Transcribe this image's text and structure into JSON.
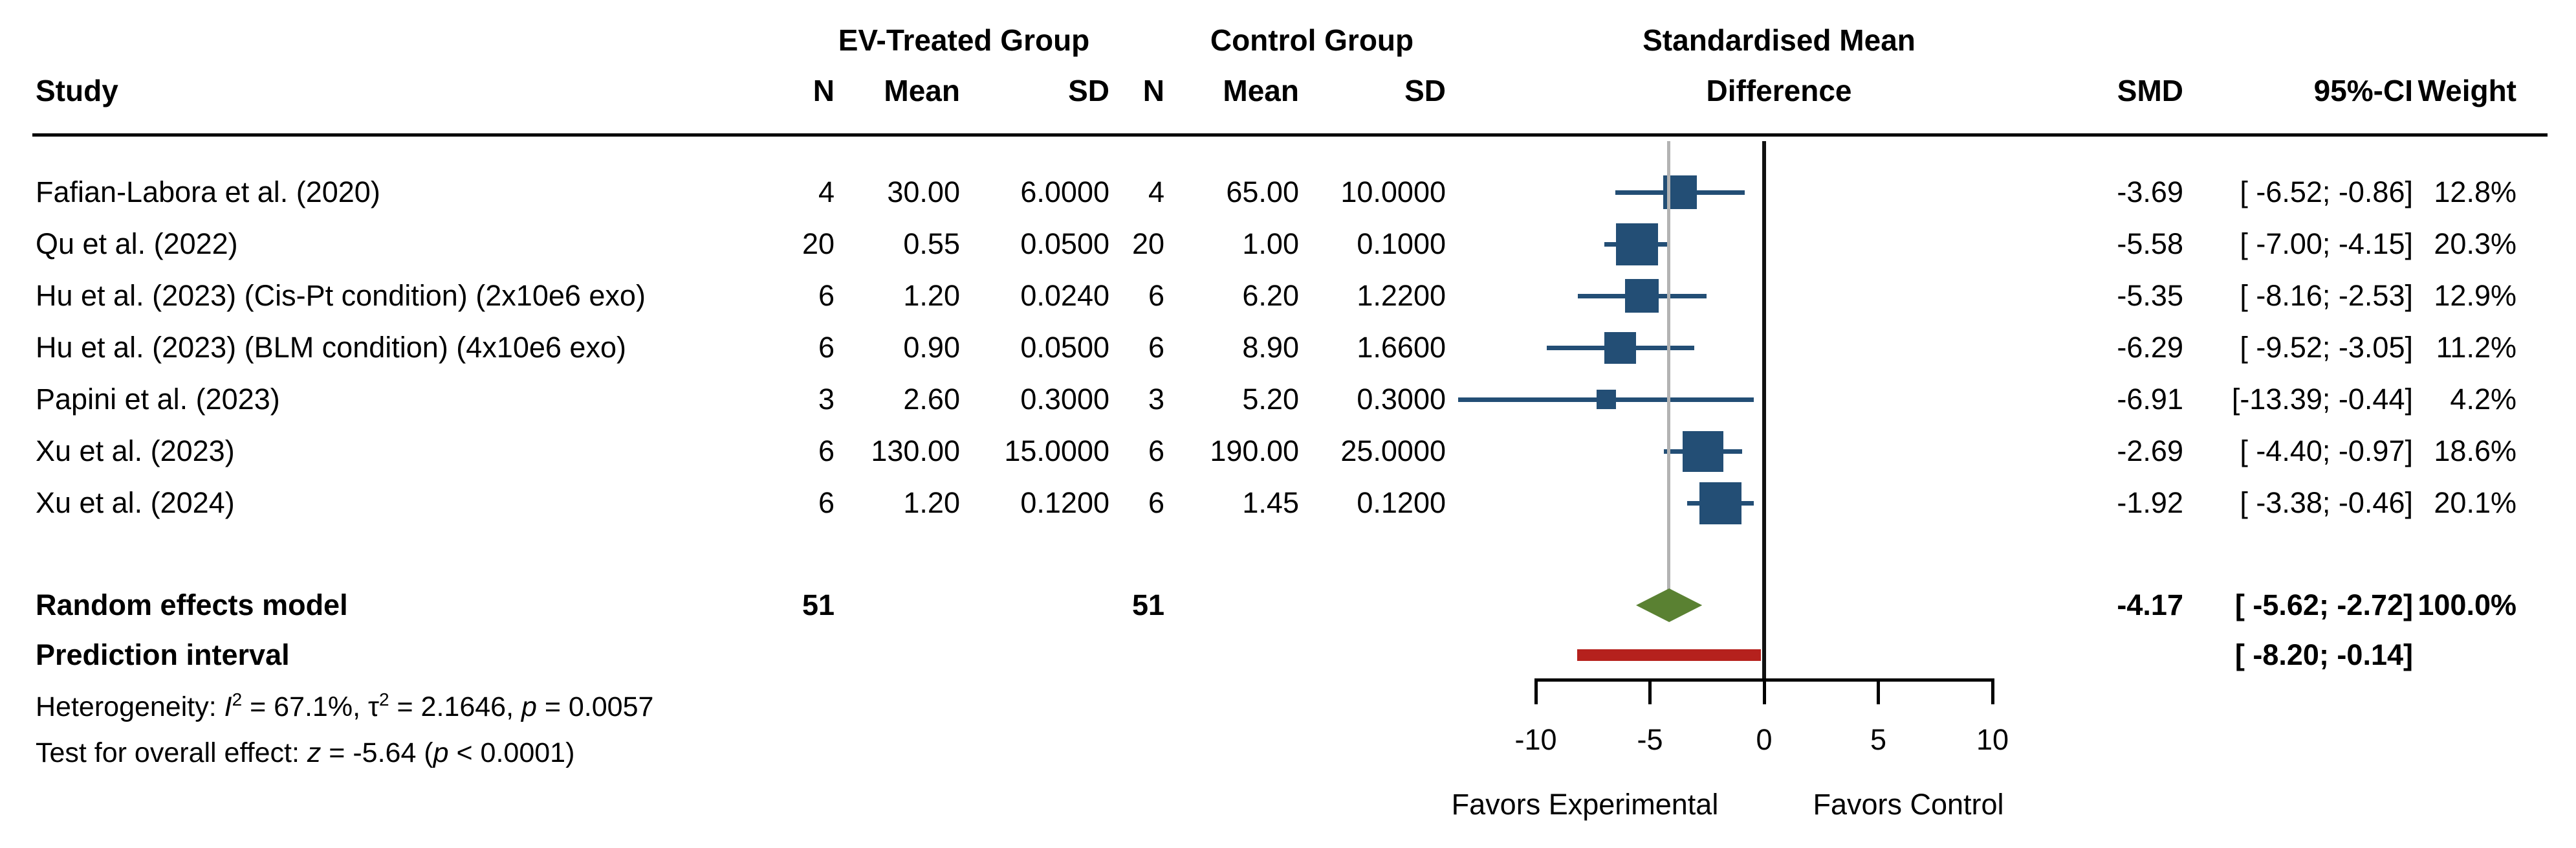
{
  "headers": {
    "study": "Study",
    "ev_group": "EV-Treated Group",
    "control_group": "Control Group",
    "smd_header_line1": "Standardised Mean",
    "smd_header_line2": "Difference",
    "n": "N",
    "mean": "Mean",
    "sd": "SD",
    "smd": "SMD",
    "ci": "95%-CI",
    "weight": "Weight"
  },
  "chart_data": {
    "type": "forest",
    "effect_measure": "Standardised Mean Difference",
    "x_axis": {
      "range": [
        -10,
        10
      ],
      "tick_values": [
        -10,
        -5,
        0,
        5,
        10
      ],
      "tick_labels": [
        "-10",
        "-5",
        "0",
        "5",
        "10"
      ],
      "ref_line": 0,
      "pooled_effect_line": -4.17,
      "label_left": "Favors Experimental",
      "label_right": "Favors Control"
    },
    "studies": [
      {
        "label": "Fafian-Labora et al. (2020)",
        "n1": "4",
        "mean1": "30.00",
        "sd1": "6.0000",
        "n2": "4",
        "mean2": "65.00",
        "sd2": "10.0000",
        "smd": -3.69,
        "ci_low": -6.52,
        "ci_high": -0.86,
        "weight": 12.8,
        "smd_text": "-3.69",
        "ci_text": "[ -6.52; -0.86]",
        "weight_text": "12.8%"
      },
      {
        "label": "Qu et al. (2022)",
        "n1": "20",
        "mean1": "0.55",
        "sd1": "0.0500",
        "n2": "20",
        "mean2": "1.00",
        "sd2": "0.1000",
        "smd": -5.58,
        "ci_low": -7.0,
        "ci_high": -4.15,
        "weight": 20.3,
        "smd_text": "-5.58",
        "ci_text": "[ -7.00; -4.15]",
        "weight_text": "20.3%"
      },
      {
        "label": "Hu et al. (2023) (Cis-Pt condition) (2x10e6 exo)",
        "n1": "6",
        "mean1": "1.20",
        "sd1": "0.0240",
        "n2": "6",
        "mean2": "6.20",
        "sd2": "1.2200",
        "smd": -5.35,
        "ci_low": -8.16,
        "ci_high": -2.53,
        "weight": 12.9,
        "smd_text": "-5.35",
        "ci_text": "[ -8.16; -2.53]",
        "weight_text": "12.9%"
      },
      {
        "label": "Hu et al. (2023) (BLM condition) (4x10e6 exo)",
        "n1": "6",
        "mean1": "0.90",
        "sd1": "0.0500",
        "n2": "6",
        "mean2": "8.90",
        "sd2": "1.6600",
        "smd": -6.29,
        "ci_low": -9.52,
        "ci_high": -3.05,
        "weight": 11.2,
        "smd_text": "-6.29",
        "ci_text": "[ -9.52; -3.05]",
        "weight_text": "11.2%"
      },
      {
        "label": "Papini et al. (2023)",
        "n1": "3",
        "mean1": "2.60",
        "sd1": "0.3000",
        "n2": "3",
        "mean2": "5.20",
        "sd2": "0.3000",
        "smd": -6.91,
        "ci_low": -13.39,
        "ci_high": -0.44,
        "weight": 4.2,
        "smd_text": "-6.91",
        "ci_text": "[-13.39; -0.44]",
        "weight_text": "4.2%"
      },
      {
        "label": "Xu et al. (2023)",
        "n1": "6",
        "mean1": "130.00",
        "sd1": "15.0000",
        "n2": "6",
        "mean2": "190.00",
        "sd2": "25.0000",
        "smd": -2.69,
        "ci_low": -4.4,
        "ci_high": -0.97,
        "weight": 18.6,
        "smd_text": "-2.69",
        "ci_text": "[ -4.40; -0.97]",
        "weight_text": "18.6%"
      },
      {
        "label": "Xu et al. (2024)",
        "n1": "6",
        "mean1": "1.20",
        "sd1": "0.1200",
        "n2": "6",
        "mean2": "1.45",
        "sd2": "0.1200",
        "smd": -1.92,
        "ci_low": -3.38,
        "ci_high": -0.46,
        "weight": 20.1,
        "smd_text": "-1.92",
        "ci_text": "[ -3.38; -0.46]",
        "weight_text": "20.1%"
      }
    ],
    "summary": {
      "label": "Random effects model",
      "n1": "51",
      "n2": "51",
      "smd": -4.17,
      "ci_low": -5.62,
      "ci_high": -2.72,
      "smd_text": "-4.17",
      "ci_text": "[ -5.62; -2.72]",
      "weight_text": "100.0%"
    },
    "prediction_interval": {
      "label": "Prediction interval",
      "low": -8.2,
      "high": -0.14,
      "ci_text": "[ -8.20; -0.14]"
    },
    "heterogeneity_segments": [
      {
        "t": "Heterogeneity: "
      },
      {
        "t": "I",
        "i": 1
      },
      {
        "t": "2",
        "sup": 1
      },
      {
        "t": " = 67.1%, τ"
      },
      {
        "t": "2",
        "sup": 1
      },
      {
        "t": " = 2.1646, "
      },
      {
        "t": "p",
        "i": 1
      },
      {
        "t": " = 0.0057"
      }
    ],
    "overall_test_segments": [
      {
        "t": "Test for overall effect: "
      },
      {
        "t": "z",
        "i": 1
      },
      {
        "t": " = -5.64 ("
      },
      {
        "t": "p",
        "i": 1
      },
      {
        "t": " < 0.0001)"
      }
    ]
  },
  "colors": {
    "square": "#234e75",
    "ci_line": "#234e75",
    "diamond": "#5a8132",
    "prediction_bar": "#b5211d",
    "ref_line": "#111111",
    "pooled_line": "#b3b3b3",
    "axis": "#000000"
  }
}
